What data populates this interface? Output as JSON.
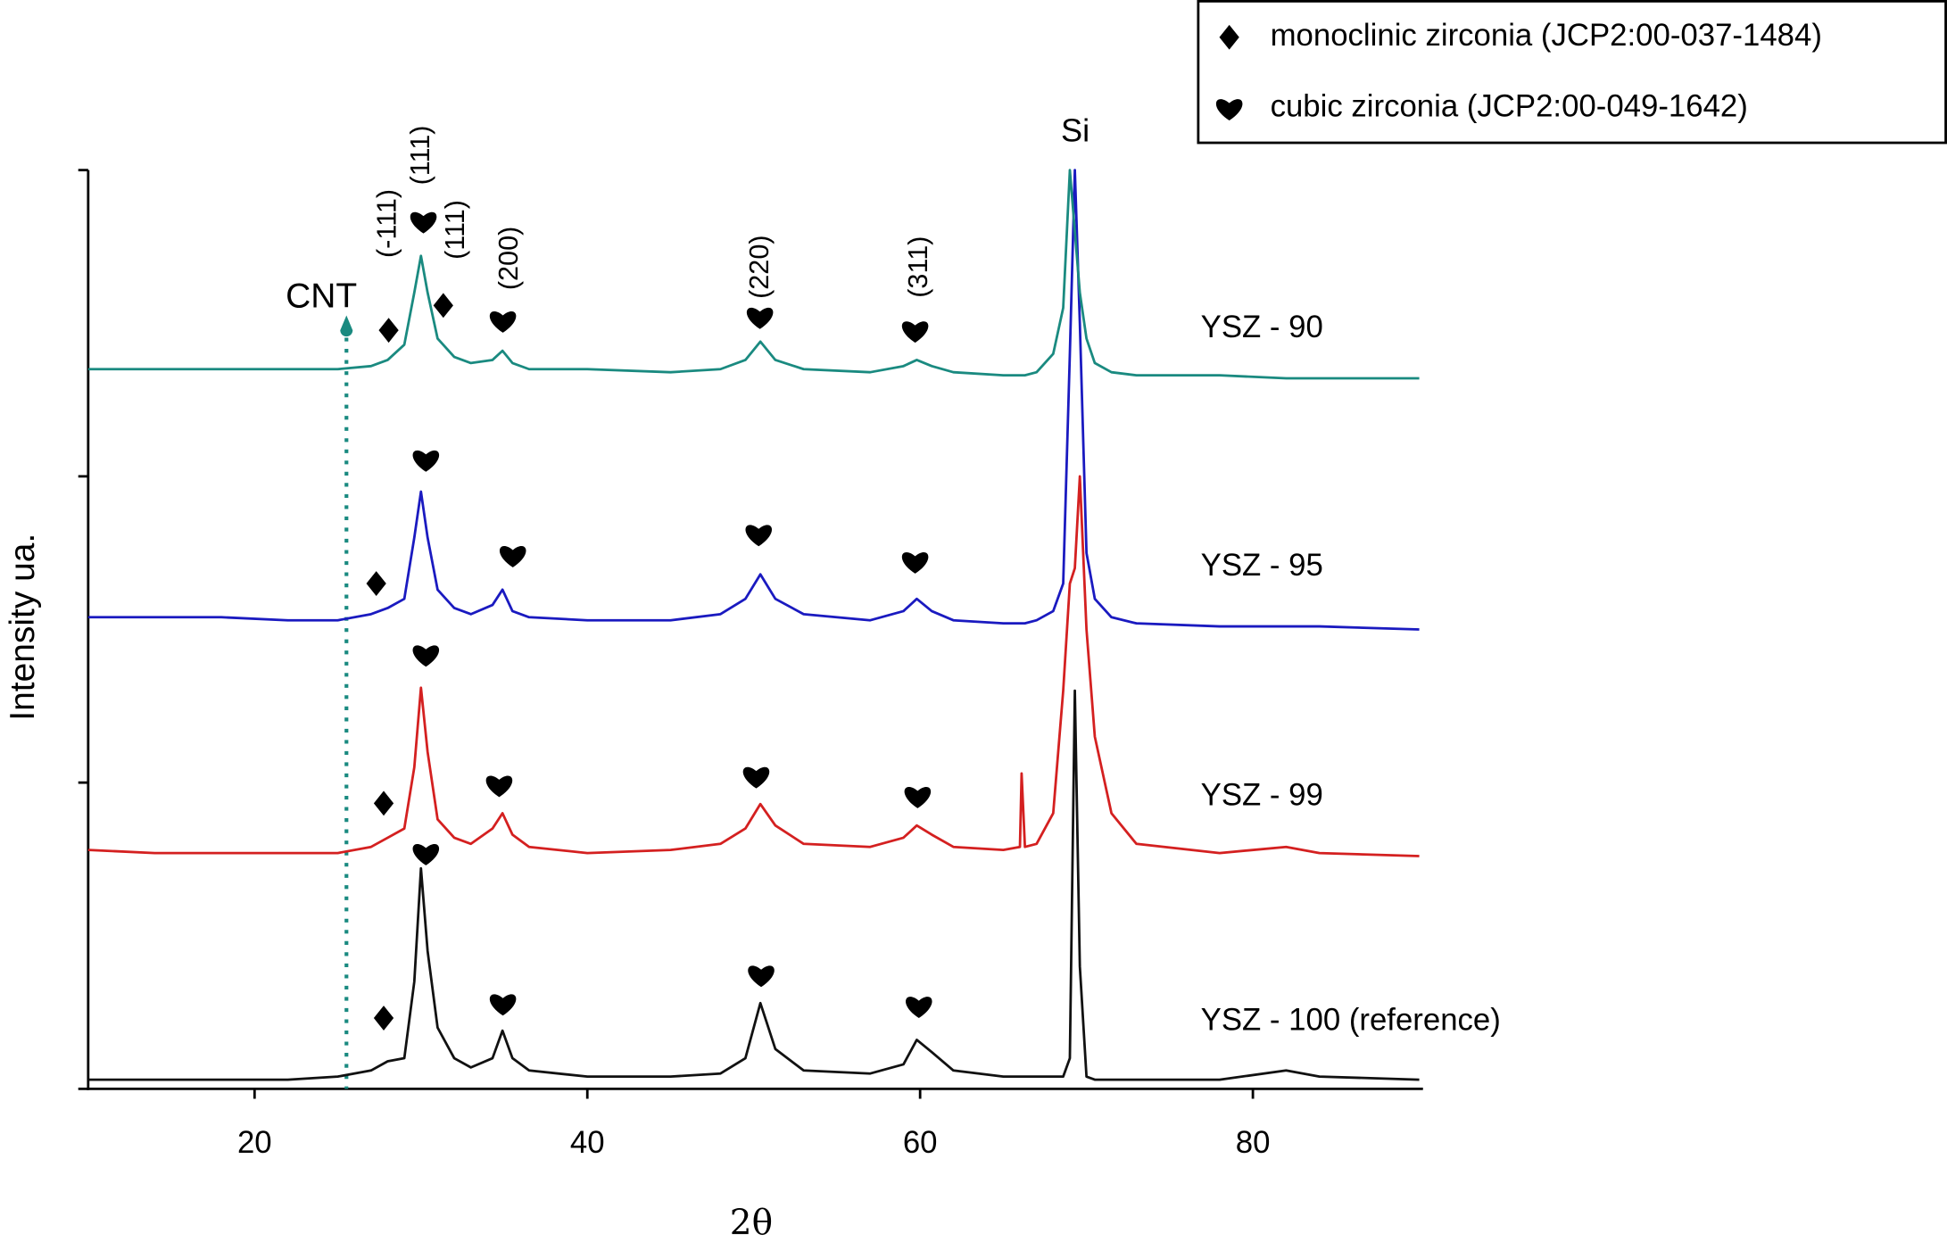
{
  "chart_data": {
    "type": "line",
    "x_label": "2θ",
    "y_label": "Intensity ua.",
    "xlim": [
      10,
      90
    ],
    "xticks": [
      20,
      40,
      60,
      80
    ],
    "ylim": [
      0,
      3
    ],
    "yticks": [
      0,
      1,
      2,
      3
    ],
    "grid": false,
    "legend": [
      "monoclinic zirconia (JCP2:00-037-1484)",
      "cubic zirconia (JCP2:00-049-1642)"
    ],
    "annotations": [
      "CNT",
      "Si",
      "(-111)",
      "(111)",
      "(111)",
      "(200)",
      "(220)",
      "(311)"
    ],
    "x": [
      10,
      14,
      18,
      22,
      25,
      27,
      28,
      29,
      29.6,
      30,
      30.4,
      31,
      32,
      33,
      34.3,
      34.9,
      35.5,
      36.5,
      40,
      45,
      48,
      49.5,
      50.4,
      51.3,
      53,
      57,
      59,
      59.8,
      60.7,
      62,
      65,
      66,
      66.1,
      66.3,
      67,
      68,
      68.6,
      69,
      69.3,
      69.6,
      70,
      70.5,
      71.5,
      73,
      78,
      82,
      84,
      90
    ],
    "series": [
      {
        "name": "YSZ - 100 (reference)",
        "color": "#111111",
        "values": [
          0.03,
          0.03,
          0.03,
          0.03,
          0.04,
          0.06,
          0.09,
          0.1,
          0.35,
          0.72,
          0.45,
          0.2,
          0.1,
          0.07,
          0.1,
          0.19,
          0.1,
          0.06,
          0.04,
          0.04,
          0.05,
          0.1,
          0.28,
          0.13,
          0.06,
          0.05,
          0.08,
          0.16,
          0.12,
          0.06,
          0.04,
          0.04,
          0.04,
          0.04,
          0.04,
          0.04,
          0.04,
          0.1,
          1.3,
          0.4,
          0.04,
          0.03,
          0.03,
          0.03,
          0.03,
          0.06,
          0.04,
          0.03
        ]
      },
      {
        "name": "YSZ - 99",
        "color": "#d42020",
        "values": [
          0.78,
          0.77,
          0.77,
          0.77,
          0.77,
          0.79,
          0.82,
          0.85,
          1.05,
          1.31,
          1.1,
          0.88,
          0.82,
          0.8,
          0.85,
          0.9,
          0.83,
          0.79,
          0.77,
          0.78,
          0.8,
          0.85,
          0.93,
          0.86,
          0.8,
          0.79,
          0.82,
          0.86,
          0.83,
          0.79,
          0.78,
          0.79,
          1.03,
          0.79,
          0.8,
          0.9,
          1.3,
          1.65,
          1.7,
          2.0,
          1.5,
          1.15,
          0.9,
          0.8,
          0.77,
          0.79,
          0.77,
          0.76
        ]
      },
      {
        "name": "YSZ - 95",
        "color": "#1a1ac0",
        "values": [
          1.54,
          1.54,
          1.54,
          1.53,
          1.53,
          1.55,
          1.57,
          1.6,
          1.8,
          1.95,
          1.8,
          1.63,
          1.57,
          1.55,
          1.58,
          1.63,
          1.56,
          1.54,
          1.53,
          1.53,
          1.55,
          1.6,
          1.68,
          1.6,
          1.55,
          1.53,
          1.56,
          1.6,
          1.56,
          1.53,
          1.52,
          1.52,
          1.52,
          1.52,
          1.53,
          1.56,
          1.65,
          2.4,
          3.0,
          2.5,
          1.75,
          1.6,
          1.54,
          1.52,
          1.51,
          1.51,
          1.51,
          1.5
        ]
      },
      {
        "name": "YSZ - 90",
        "color": "#1a8a80",
        "values": [
          2.35,
          2.35,
          2.35,
          2.35,
          2.35,
          2.36,
          2.38,
          2.43,
          2.6,
          2.72,
          2.6,
          2.45,
          2.39,
          2.37,
          2.38,
          2.41,
          2.37,
          2.35,
          2.35,
          2.34,
          2.35,
          2.38,
          2.44,
          2.38,
          2.35,
          2.34,
          2.36,
          2.38,
          2.36,
          2.34,
          2.33,
          2.33,
          2.33,
          2.33,
          2.34,
          2.4,
          2.55,
          3.0,
          2.8,
          2.6,
          2.45,
          2.37,
          2.34,
          2.33,
          2.33,
          2.32,
          2.32,
          2.32
        ]
      }
    ]
  }
}
